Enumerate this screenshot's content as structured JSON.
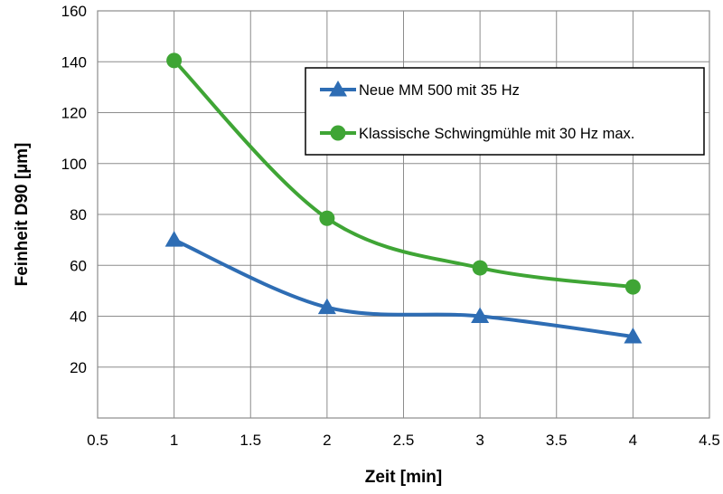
{
  "chart_data": {
    "type": "line",
    "title": "",
    "xlabel": "Zeit [min]",
    "ylabel": "Feinheit D90 [µm]",
    "xlim": [
      0.5,
      4.5
    ],
    "ylim": [
      0,
      160
    ],
    "x_ticks": [
      "0.5",
      "1",
      "1.5",
      "2",
      "2.5",
      "3",
      "3.5",
      "4",
      "4.5"
    ],
    "y_ticks": [
      "20",
      "40",
      "60",
      "80",
      "100",
      "120",
      "140",
      "160"
    ],
    "grid": true,
    "legend_position": "top-right",
    "smooth": true,
    "series": [
      {
        "name": "Neue MM 500 mit 35 Hz",
        "color": "#2e6db4",
        "marker": "triangle",
        "x": [
          1,
          2,
          3,
          4
        ],
        "y": [
          70,
          43.5,
          40,
          32
        ]
      },
      {
        "name": "Klassische Schwingmühle mit 30 Hz max.",
        "color": "#3fa535",
        "marker": "circle",
        "x": [
          1,
          2,
          3,
          4
        ],
        "y": [
          140.5,
          78.5,
          59,
          51.5
        ]
      }
    ]
  }
}
